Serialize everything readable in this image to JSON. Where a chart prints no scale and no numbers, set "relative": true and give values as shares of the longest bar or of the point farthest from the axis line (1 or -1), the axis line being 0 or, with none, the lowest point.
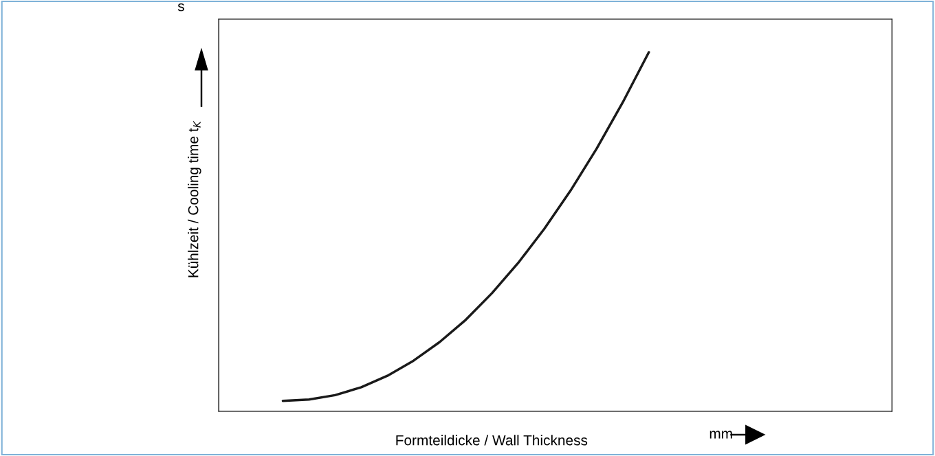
{
  "chart_data": {
    "type": "line",
    "relative": true,
    "xlabel": "Formteildicke / Wall Thickness",
    "ylabel": "Kühlzeit / Cooling time t$_{K}$",
    "annotations": [
      "s",
      "mm"
    ],
    "categories": [
      null,
      null,
      null,
      null,
      null,
      null,
      null,
      null,
      null,
      null,
      null,
      null,
      null,
      null,
      null
    ],
    "series": [
      {
        "color": "#1a1a1a",
        "values": [
          0.029,
          0.033,
          0.045,
          0.067,
          0.099,
          0.141,
          0.193,
          0.255,
          0.329,
          0.413,
          0.508,
          0.614,
          0.731,
          0.86,
          1.0
        ]
      }
    ],
    "legend": false,
    "line_style": "solid",
    "marker": "none"
  }
}
